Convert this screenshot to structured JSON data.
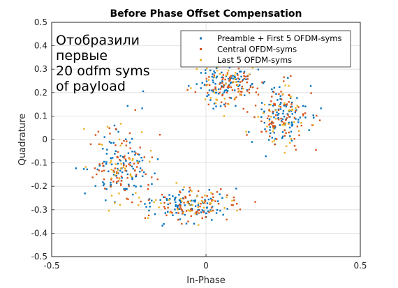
{
  "chart_data": {
    "type": "scatter",
    "title": "Before Phase Offset Compensation",
    "xlabel": "In-Phase",
    "ylabel": "Quadrature",
    "xlim": [
      -0.5,
      0.5
    ],
    "ylim": [
      -0.5,
      0.5
    ],
    "xticks": [
      -0.5,
      0,
      0.5
    ],
    "xtick_labels": [
      "-0.5",
      "0",
      "0.5"
    ],
    "yticks": [
      -0.5,
      -0.4,
      -0.3,
      -0.2,
      -0.1,
      0,
      0.1,
      0.2,
      0.3,
      0.4,
      0.5
    ],
    "ytick_labels": [
      "-0.5",
      "-0.4",
      "-0.3",
      "-0.2",
      "-0.1",
      "0",
      "0.1",
      "0.2",
      "0.3",
      "0.4",
      "0.5"
    ],
    "grid": true,
    "legend_position": "top-right",
    "annotation": [
      "Отобразили",
      "первые",
      "20 odfm syms",
      "of payload"
    ],
    "clusters": [
      {
        "center": [
          0.07,
          0.24
        ],
        "spread": [
          0.05,
          0.045
        ]
      },
      {
        "center": [
          0.25,
          0.1
        ],
        "spread": [
          0.045,
          0.07
        ]
      },
      {
        "center": [
          -0.28,
          -0.12
        ],
        "spread": [
          0.05,
          0.09
        ]
      },
      {
        "center": [
          -0.05,
          -0.28
        ],
        "spread": [
          0.08,
          0.035
        ]
      }
    ],
    "series": [
      {
        "name": "Preamble + First 5 OFDM-syms",
        "color": "#0072BD",
        "count_per_cluster": 95,
        "seed": 11
      },
      {
        "name": "Central OFDM-syms",
        "color": "#D95319",
        "count_per_cluster": 80,
        "seed": 29
      },
      {
        "name": "Last 5 OFDM-syms",
        "color": "#EDB120",
        "count_per_cluster": 40,
        "seed": 53
      }
    ]
  }
}
